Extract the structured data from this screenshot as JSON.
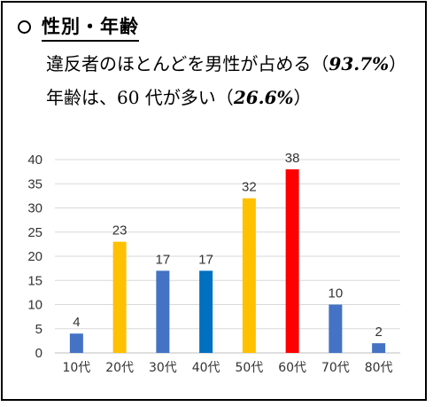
{
  "header": {
    "title": "性別・年齢",
    "line1_text": "違反者のほとんどを男性が占める（",
    "line1_value": "93.7%",
    "line1_close": "）",
    "line2_text": "年齢は、60 代が多い（",
    "line2_value": "26.6%",
    "line2_close": "）"
  },
  "chart_data": {
    "type": "bar",
    "categories": [
      "10代",
      "20代",
      "30代",
      "40代",
      "50代",
      "60代",
      "70代",
      "80代"
    ],
    "values": [
      4,
      23,
      17,
      17,
      32,
      38,
      10,
      2
    ],
    "colors": [
      "#4472C4",
      "#FFC000",
      "#4472C4",
      "#0070C0",
      "#FFC000",
      "#FF0000",
      "#4472C4",
      "#4472C4"
    ],
    "label_colors": [
      "#333333",
      "#333333",
      "#333333",
      "#333333",
      "#333333",
      "#C00000",
      "#333333",
      "#333333"
    ],
    "yticks": [
      "0",
      "5",
      "10",
      "15",
      "20",
      "25",
      "30",
      "35",
      "40"
    ],
    "ylim": [
      0,
      40
    ],
    "grid": true
  }
}
